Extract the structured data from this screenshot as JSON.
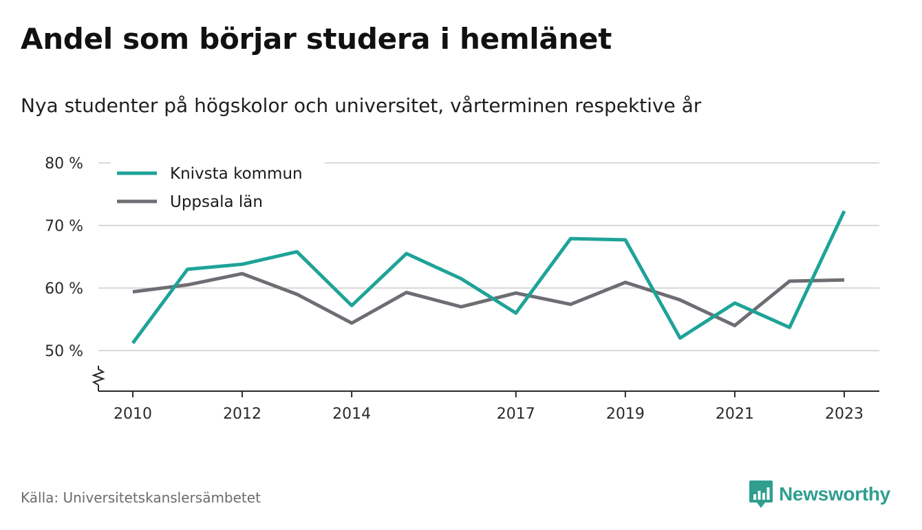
{
  "header": {
    "title": "Andel som börjar studera i hemlänet",
    "subtitle": "Nya studenter på högskolor och universitet, vårterminen respektive år"
  },
  "footer": {
    "source": "Källa: Universitetskanslersämbetet",
    "brand": "Newsworthy",
    "brand_icon": "bar-chart-speech-bubble-icon",
    "brand_color": "#2f9e8f"
  },
  "chart_data": {
    "type": "line",
    "title": "Andel som börjar studera i hemlänet",
    "subtitle": "Nya studenter på högskolor och universitet, vårterminen respektive år",
    "xlabel": "",
    "ylabel": "",
    "x": [
      2010,
      2011,
      2012,
      2013,
      2014,
      2015,
      2016,
      2017,
      2018,
      2019,
      2020,
      2021,
      2022,
      2023
    ],
    "x_tick_labels": [
      "2010",
      "2012",
      "2014",
      "2017",
      "2019",
      "2021",
      "2023"
    ],
    "y_tick_labels": [
      "50 %",
      "60 %",
      "70 %",
      "80 %"
    ],
    "y_ticks": [
      50,
      60,
      70,
      80
    ],
    "ylim": [
      44,
      80
    ],
    "y_axis_break": true,
    "grid": true,
    "legend_position": "top-left",
    "series": [
      {
        "name": "Knivsta kommun",
        "color": "#1fa398",
        "values": [
          51.2,
          63.0,
          63.8,
          65.8,
          57.2,
          65.5,
          61.5,
          56.0,
          67.9,
          67.7,
          52.0,
          57.6,
          53.7,
          72.3
        ]
      },
      {
        "name": "Uppsala län",
        "color": "#6e6d73",
        "values": [
          59.4,
          60.5,
          62.3,
          59.0,
          54.4,
          59.3,
          57.0,
          59.2,
          57.4,
          60.9,
          58.1,
          54.0,
          61.1,
          61.3
        ]
      }
    ]
  }
}
